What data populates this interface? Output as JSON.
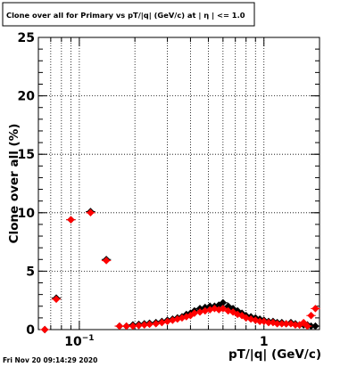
{
  "chart_data": {
    "type": "scatter",
    "title": "Clone  over all for Primary vs pT/|q| (GeV/c) at |  η | <= 1.0",
    "xlabel": "pT/|q| (GeV/c)",
    "ylabel": "Clone  over all (%)",
    "xscale": "log",
    "xlim": [
      0.06,
      2.0
    ],
    "ylim": [
      0,
      25
    ],
    "grid": true,
    "x_tick_labels": [
      {
        "value": 0.1,
        "base": "10",
        "exp": "−1"
      },
      {
        "value": 1,
        "base": "1",
        "exp": ""
      }
    ],
    "y_ticks": [
      0,
      5,
      10,
      15,
      20,
      25
    ],
    "x_grid_values": [
      0.07,
      0.08,
      0.09,
      0.1,
      0.2,
      0.3,
      0.4,
      0.5,
      0.6,
      0.7,
      0.8,
      0.9,
      1,
      2
    ],
    "series": [
      {
        "color": "#000000",
        "marker": "diamond",
        "points": [
          {
            "x": 0.065,
            "y": 0.0
          },
          {
            "x": 0.075,
            "y": 2.7
          },
          {
            "x": 0.09,
            "y": 9.4
          },
          {
            "x": 0.115,
            "y": 10.1
          },
          {
            "x": 0.14,
            "y": 6.0
          },
          {
            "x": 0.165,
            "y": 0.3
          },
          {
            "x": 0.18,
            "y": 0.3
          },
          {
            "x": 0.195,
            "y": 0.4
          },
          {
            "x": 0.21,
            "y": 0.45
          },
          {
            "x": 0.225,
            "y": 0.5
          },
          {
            "x": 0.24,
            "y": 0.55
          },
          {
            "x": 0.26,
            "y": 0.6
          },
          {
            "x": 0.28,
            "y": 0.7
          },
          {
            "x": 0.3,
            "y": 0.8
          },
          {
            "x": 0.32,
            "y": 0.9
          },
          {
            "x": 0.34,
            "y": 1.0
          },
          {
            "x": 0.36,
            "y": 1.1
          },
          {
            "x": 0.38,
            "y": 1.3
          },
          {
            "x": 0.4,
            "y": 1.4
          },
          {
            "x": 0.42,
            "y": 1.6
          },
          {
            "x": 0.45,
            "y": 1.8
          },
          {
            "x": 0.48,
            "y": 1.9
          },
          {
            "x": 0.51,
            "y": 2.0
          },
          {
            "x": 0.54,
            "y": 2.0
          },
          {
            "x": 0.57,
            "y": 2.1
          },
          {
            "x": 0.6,
            "y": 2.3
          },
          {
            "x": 0.64,
            "y": 2.0
          },
          {
            "x": 0.68,
            "y": 1.8
          },
          {
            "x": 0.72,
            "y": 1.6
          },
          {
            "x": 0.76,
            "y": 1.4
          },
          {
            "x": 0.8,
            "y": 1.2
          },
          {
            "x": 0.85,
            "y": 1.1
          },
          {
            "x": 0.9,
            "y": 1.0
          },
          {
            "x": 0.95,
            "y": 0.9
          },
          {
            "x": 1.0,
            "y": 0.8
          },
          {
            "x": 1.06,
            "y": 0.7
          },
          {
            "x": 1.12,
            "y": 0.7
          },
          {
            "x": 1.18,
            "y": 0.6
          },
          {
            "x": 1.25,
            "y": 0.6
          },
          {
            "x": 1.32,
            "y": 0.5
          },
          {
            "x": 1.4,
            "y": 0.6
          },
          {
            "x": 1.48,
            "y": 0.5
          },
          {
            "x": 1.56,
            "y": 0.4
          },
          {
            "x": 1.64,
            "y": 0.4
          },
          {
            "x": 1.72,
            "y": 0.4
          },
          {
            "x": 1.8,
            "y": 0.3
          },
          {
            "x": 1.9,
            "y": 0.3
          }
        ]
      },
      {
        "color": "#ff0000",
        "marker": "diamond",
        "points": [
          {
            "x": 0.065,
            "y": 0.0
          },
          {
            "x": 0.075,
            "y": 2.6
          },
          {
            "x": 0.09,
            "y": 9.4
          },
          {
            "x": 0.115,
            "y": 10.0
          },
          {
            "x": 0.14,
            "y": 5.9
          },
          {
            "x": 0.165,
            "y": 0.3
          },
          {
            "x": 0.18,
            "y": 0.3
          },
          {
            "x": 0.195,
            "y": 0.3
          },
          {
            "x": 0.21,
            "y": 0.35
          },
          {
            "x": 0.225,
            "y": 0.4
          },
          {
            "x": 0.24,
            "y": 0.45
          },
          {
            "x": 0.26,
            "y": 0.5
          },
          {
            "x": 0.28,
            "y": 0.6
          },
          {
            "x": 0.3,
            "y": 0.7
          },
          {
            "x": 0.32,
            "y": 0.8
          },
          {
            "x": 0.34,
            "y": 0.9
          },
          {
            "x": 0.36,
            "y": 1.0
          },
          {
            "x": 0.38,
            "y": 1.1
          },
          {
            "x": 0.4,
            "y": 1.2
          },
          {
            "x": 0.42,
            "y": 1.4
          },
          {
            "x": 0.45,
            "y": 1.5
          },
          {
            "x": 0.48,
            "y": 1.6
          },
          {
            "x": 0.51,
            "y": 1.7
          },
          {
            "x": 0.54,
            "y": 1.8
          },
          {
            "x": 0.57,
            "y": 1.7
          },
          {
            "x": 0.6,
            "y": 1.8
          },
          {
            "x": 0.64,
            "y": 1.6
          },
          {
            "x": 0.68,
            "y": 1.5
          },
          {
            "x": 0.72,
            "y": 1.3
          },
          {
            "x": 0.76,
            "y": 1.2
          },
          {
            "x": 0.8,
            "y": 1.0
          },
          {
            "x": 0.85,
            "y": 0.9
          },
          {
            "x": 0.9,
            "y": 0.8
          },
          {
            "x": 0.95,
            "y": 0.7
          },
          {
            "x": 1.0,
            "y": 0.7
          },
          {
            "x": 1.06,
            "y": 0.6
          },
          {
            "x": 1.12,
            "y": 0.6
          },
          {
            "x": 1.18,
            "y": 0.5
          },
          {
            "x": 1.25,
            "y": 0.5
          },
          {
            "x": 1.32,
            "y": 0.5
          },
          {
            "x": 1.4,
            "y": 0.5
          },
          {
            "x": 1.48,
            "y": 0.4
          },
          {
            "x": 1.56,
            "y": 0.4
          },
          {
            "x": 1.64,
            "y": 0.6
          },
          {
            "x": 1.72,
            "y": 0.3
          },
          {
            "x": 1.8,
            "y": 1.2
          },
          {
            "x": 1.9,
            "y": 1.8
          }
        ]
      }
    ]
  },
  "footer": {
    "timestamp": "Fri Nov 20 09:14:29 2020"
  }
}
